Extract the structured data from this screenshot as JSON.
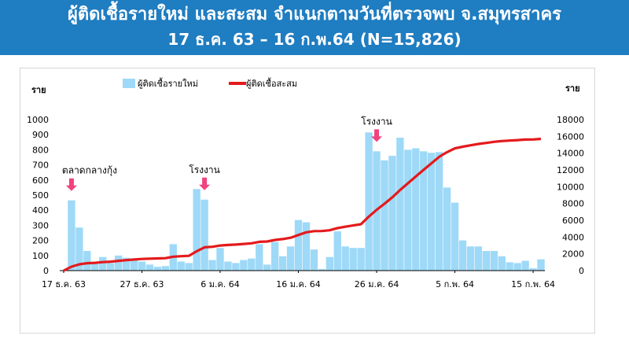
{
  "header": {
    "title_line1": "ผู้ติดเชื้อรายใหม่ และสะสม จำแนกตามวันที่ตรวจพบ จ.สมุทรสาคร",
    "title_line2": "17 ธ.ค. 63 – 16 ก.พ.64 (N=15,826)",
    "background_color": "#1f7dc1"
  },
  "chart_data": {
    "type": "bar",
    "title": "",
    "ylabel_left": "ราย",
    "ylabel_right": "ราย",
    "ylim_left": [
      0,
      1000
    ],
    "yticks_left": [
      0,
      100,
      200,
      300,
      400,
      500,
      600,
      700,
      800,
      900,
      1000
    ],
    "ylim_right": [
      0,
      18000
    ],
    "yticks_right": [
      0,
      2000,
      4000,
      6000,
      8000,
      10000,
      12000,
      14000,
      16000,
      18000
    ],
    "x_start_date": "17 ธ.ค. 63",
    "x_tick_labels": [
      {
        "index": 0,
        "label": "17 ธ.ค. 63"
      },
      {
        "index": 10,
        "label": "27 ธ.ค. 63"
      },
      {
        "index": 20,
        "label": "6 ม.ค. 64"
      },
      {
        "index": 30,
        "label": "16 ม.ค. 64"
      },
      {
        "index": 40,
        "label": "26 ม.ค. 64"
      },
      {
        "index": 50,
        "label": "5 ก.พ. 64"
      },
      {
        "index": 60,
        "label": "15 ก.พ. 64"
      }
    ],
    "legend_placement": "top",
    "grid": false,
    "series": [
      {
        "name": "ผู้ติดเชื้อรายใหม่",
        "kind": "bar",
        "axis": "left",
        "color": "#9ed9f7",
        "values": [
          0,
          465,
          285,
          130,
          45,
          90,
          50,
          100,
          85,
          75,
          60,
          40,
          25,
          30,
          175,
          60,
          50,
          540,
          470,
          70,
          150,
          60,
          50,
          70,
          80,
          175,
          40,
          190,
          95,
          160,
          335,
          320,
          140,
          10,
          90,
          260,
          160,
          150,
          150,
          915,
          790,
          730,
          760,
          880,
          800,
          810,
          790,
          780,
          785,
          550,
          450,
          200,
          160,
          160,
          130,
          130,
          95,
          55,
          50,
          65,
          15,
          75
        ]
      },
      {
        "name": "ผู้ติดเชื้อสะสม",
        "kind": "line",
        "axis": "right",
        "color": "#e41a1c",
        "values": [
          0,
          465,
          750,
          880,
          925,
          1015,
          1065,
          1165,
          1250,
          1325,
          1385,
          1425,
          1450,
          1480,
          1655,
          1715,
          1765,
          2305,
          2775,
          2845,
          2995,
          3055,
          3105,
          3175,
          3255,
          3430,
          3470,
          3660,
          3755,
          3915,
          4250,
          4570,
          4710,
          4720,
          4810,
          5070,
          5230,
          5380,
          5530,
          6445,
          7235,
          7965,
          8725,
          9605,
          10405,
          11215,
          12005,
          12785,
          13570,
          14120,
          14570,
          14770,
          14930,
          15090,
          15220,
          15350,
          15445,
          15500,
          15550,
          15615,
          15630,
          15705
        ]
      }
    ],
    "annotations": [
      {
        "label": "ตลาดกลางกุ้ง",
        "index": 1,
        "arrow_color": "#f0427f"
      },
      {
        "label": "โรงงาน",
        "index": 18,
        "arrow_color": "#f0427f"
      },
      {
        "label": "โรงงาน",
        "index": 40,
        "arrow_color": "#f0427f"
      }
    ]
  }
}
